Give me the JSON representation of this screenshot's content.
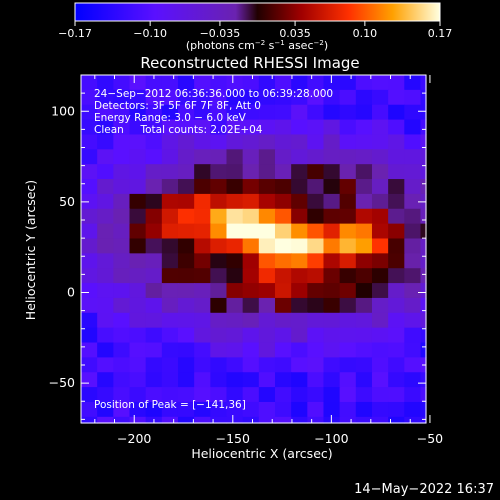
{
  "chart_data": {
    "type": "heatmap",
    "title": "Reconstructed RHESSI Image",
    "xlabel": "Heliocentric X (arcsec)",
    "ylabel": "Heliocentric Y (arcsec)",
    "xlim": [
      -227,
      -52
    ],
    "ylim": [
      -72,
      120
    ],
    "x_ticks": [
      -200,
      -150,
      -100,
      -50
    ],
    "y_ticks": [
      -50,
      0,
      50,
      100
    ],
    "x_tick_labels": [
      "−200",
      "−150",
      "−100",
      "−50"
    ],
    "y_tick_labels": [
      "−50",
      "0",
      "50",
      "100"
    ],
    "colorbar": {
      "range": [
        -0.17,
        0.17
      ],
      "ticks": [
        -0.17,
        -0.1,
        -0.035,
        0.035,
        0.1,
        0.17
      ],
      "tick_labels": [
        "−0.17",
        "−0.10",
        "−0.035",
        "0.035",
        "0.10",
        "0.17"
      ],
      "units_prefix": "(photons cm",
      "units_sup1": "−2",
      "units_mid": " s",
      "units_sup2": "−1",
      "units_mid2": " asec",
      "units_sup3": "−2",
      "units_suffix": ")"
    },
    "annotations": [
      "24−Sep−2012 06:36:36.000 to 06:39:28.000",
      "Detectors: 3F 5F 6F 7F 8F, Att 0",
      "Energy Range: 3.0 − 6.0 keV",
      "Clean     Total counts: 2.02E+04"
    ],
    "peak_label": "Position of Peak = [−141,36]",
    "sources": [
      {
        "x": -141,
        "y": 36,
        "amp": 0.17,
        "sx": 14,
        "sy": 9
      },
      {
        "x": -118,
        "y": 25,
        "amp": 0.12,
        "sx": 13,
        "sy": 8
      },
      {
        "x": -95,
        "y": 28,
        "amp": 0.085,
        "sx": 12,
        "sy": 8
      },
      {
        "x": -80,
        "y": 30,
        "amp": 0.07,
        "sx": 9,
        "sy": 7
      },
      {
        "x": -175,
        "y": 42,
        "amp": 0.07,
        "sx": 16,
        "sy": 9
      },
      {
        "x": -128,
        "y": 8,
        "amp": 0.05,
        "sx": 12,
        "sy": 9
      },
      {
        "x": -160,
        "y": 58,
        "amp": 0.03,
        "sx": 10,
        "sy": 7
      }
    ]
  },
  "footer": {
    "timestamp": "14−May−2022 16:37"
  }
}
